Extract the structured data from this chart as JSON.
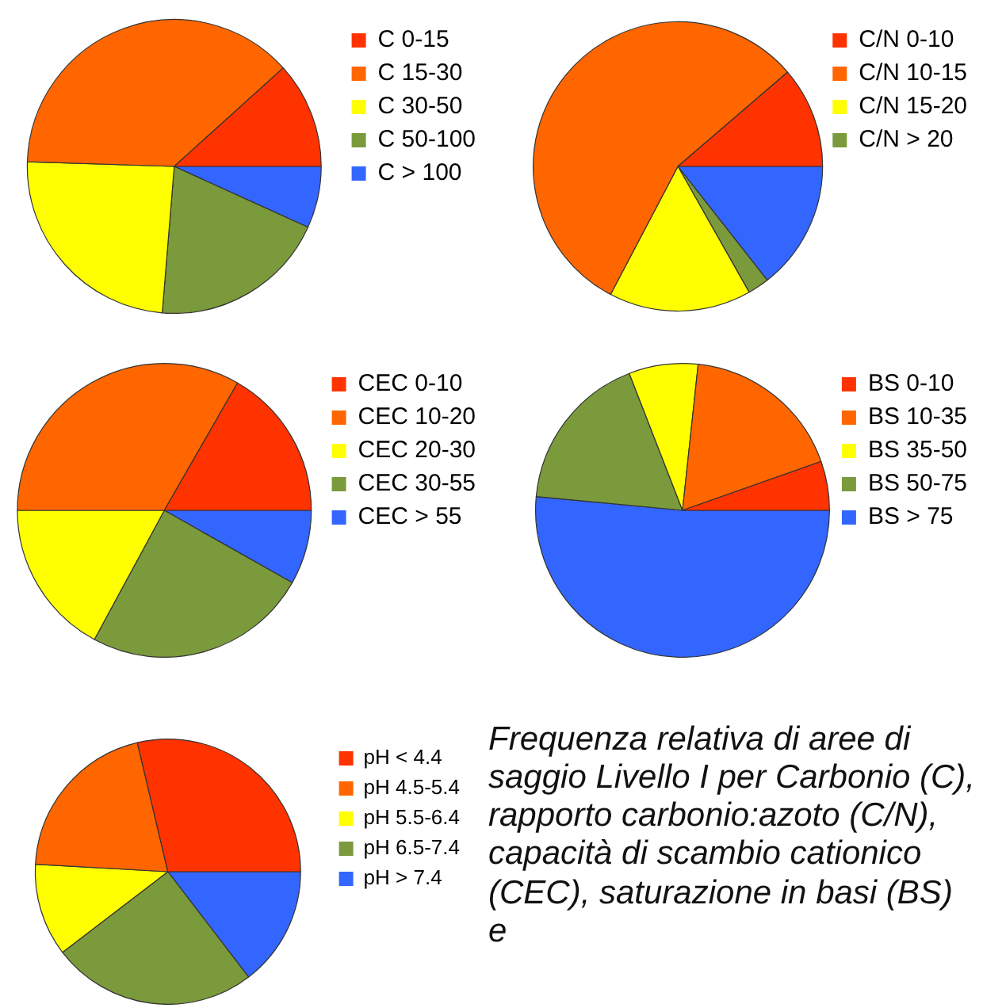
{
  "chart_data": [
    {
      "type": "pie",
      "categories": [
        "C 0-15",
        "C 15-30",
        "C 30-50",
        "C 50-100",
        "C > 100"
      ],
      "values": [
        11.7,
        37.8,
        24.2,
        19.5,
        6.8
      ],
      "colors": [
        "#ff3300",
        "#ff6600",
        "#ffff00",
        "#7a9a3c",
        "#3366ff"
      ],
      "legend": "right"
    },
    {
      "type": "pie",
      "categories": [
        "C/N 0-10",
        "C/N 10-15",
        "C/N 15-20",
        "C/N > 20",
        null
      ],
      "values": [
        11.3,
        56.0,
        15.9,
        2.4,
        14.4
      ],
      "colors": [
        "#ff3300",
        "#ff6600",
        "#ffff00",
        "#7a9a3c",
        "#3366ff"
      ],
      "legend": "right"
    },
    {
      "type": "pie",
      "categories": [
        "CEC 0-10",
        "CEC 10-20",
        "CEC 20-30",
        "CEC 30-55",
        "CEC > 55"
      ],
      "values": [
        16.7,
        33.3,
        17.1,
        24.7,
        8.2
      ],
      "colors": [
        "#ff3300",
        "#ff6600",
        "#ffff00",
        "#7a9a3c",
        "#3366ff"
      ],
      "legend": "right"
    },
    {
      "type": "pie",
      "categories": [
        "BS 0-10",
        "BS 10-35",
        "BS 35-50",
        "BS 50-75",
        "BS > 75"
      ],
      "values": [
        5.4,
        17.9,
        7.6,
        17.6,
        51.5
      ],
      "colors": [
        "#ff3300",
        "#ff6600",
        "#ffff00",
        "#7a9a3c",
        "#3366ff"
      ],
      "legend": "right"
    },
    {
      "type": "pie",
      "categories": [
        "pH < 4.4",
        "pH 4.5-5.4",
        "pH 5.5-6.4",
        "pH 6.5-7.4",
        "pH > 7.4"
      ],
      "values": [
        28.7,
        20.4,
        11.3,
        25.0,
        14.6
      ],
      "colors": [
        "#ff3300",
        "#ff6600",
        "#ffff00",
        "#7a9a3c",
        "#3366ff"
      ],
      "legend": "right",
      "annotations": [
        "Frequenza relativa di aree di saggio Livello I per Carbonio (C), rapporto carbonio:azoto (C/N), capacità di scambio cationico (CEC), saturazione in basi (BS) e"
      ]
    }
  ]
}
